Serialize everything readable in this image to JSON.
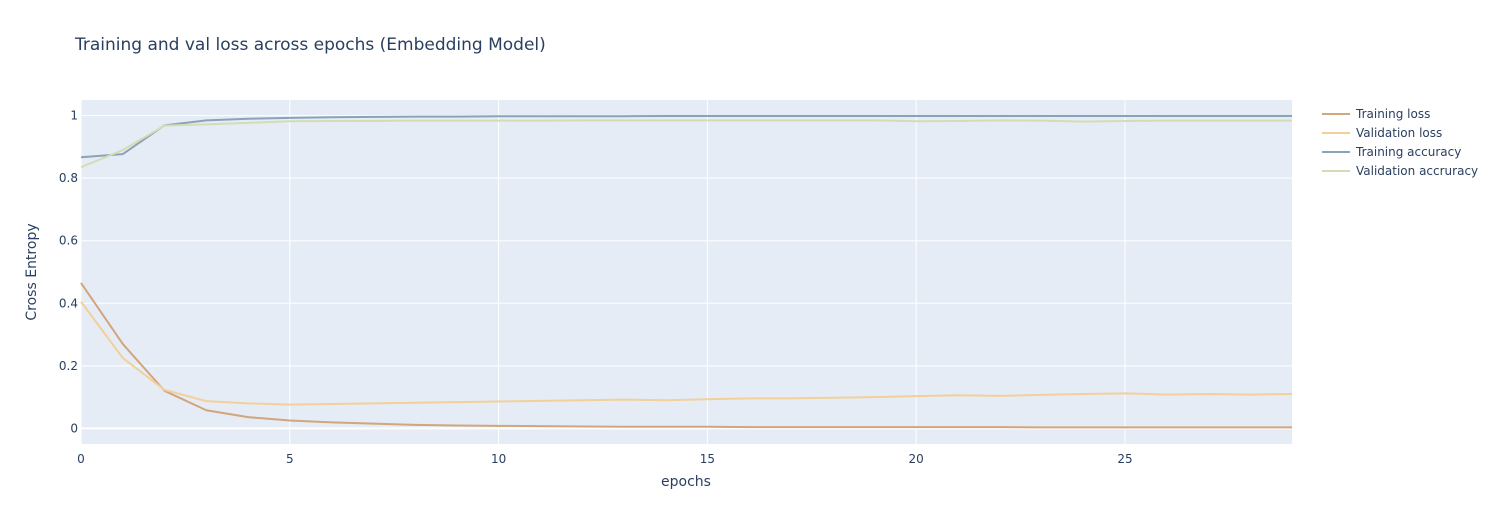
{
  "chart_data": {
    "type": "line",
    "title": "Training and val loss across epochs (Embedding Model)",
    "xlabel": "epochs",
    "ylabel": "Cross Entropy",
    "xlim": [
      0,
      29
    ],
    "ylim": [
      -0.05,
      1.05
    ],
    "x_ticks": [
      0,
      5,
      10,
      15,
      20,
      25
    ],
    "y_ticks": [
      0,
      0.2,
      0.4,
      0.6,
      0.8,
      1
    ],
    "x_tick_labels": [
      "0",
      "5",
      "10",
      "15",
      "20",
      "25"
    ],
    "y_tick_labels": [
      "0",
      "0.2",
      "0.4",
      "0.6",
      "0.8",
      "1"
    ],
    "grid": true,
    "legend_position": "top-right, outside plot",
    "x": [
      0,
      1,
      2,
      3,
      4,
      5,
      6,
      7,
      8,
      9,
      10,
      11,
      12,
      13,
      14,
      15,
      16,
      17,
      18,
      19,
      20,
      21,
      22,
      23,
      24,
      25,
      26,
      27,
      28,
      29
    ],
    "series": [
      {
        "name": "Training loss",
        "color": "#d2a57c",
        "values": [
          0.465,
          0.27,
          0.12,
          0.058,
          0.036,
          0.025,
          0.019,
          0.015,
          0.011,
          0.009,
          0.008,
          0.007,
          0.006,
          0.005,
          0.005,
          0.005,
          0.004,
          0.004,
          0.004,
          0.004,
          0.004,
          0.004,
          0.004,
          0.003,
          0.003,
          0.003,
          0.003,
          0.003,
          0.003,
          0.003
        ]
      },
      {
        "name": "Validation loss",
        "color": "#f3cf9a",
        "values": [
          0.405,
          0.225,
          0.123,
          0.087,
          0.08,
          0.076,
          0.078,
          0.08,
          0.082,
          0.084,
          0.086,
          0.088,
          0.09,
          0.092,
          0.09,
          0.093,
          0.096,
          0.096,
          0.098,
          0.1,
          0.103,
          0.106,
          0.104,
          0.107,
          0.11,
          0.112,
          0.108,
          0.11,
          0.108,
          0.11
        ]
      },
      {
        "name": "Training accuracy",
        "color": "#8aa3b8",
        "values": [
          0.867,
          0.877,
          0.969,
          0.985,
          0.99,
          0.993,
          0.995,
          0.996,
          0.997,
          0.997,
          0.998,
          0.998,
          0.998,
          0.998,
          0.999,
          0.999,
          0.999,
          0.999,
          0.999,
          0.999,
          0.999,
          0.999,
          0.999,
          0.999,
          0.999,
          0.999,
          0.999,
          0.999,
          0.999,
          0.999
        ]
      },
      {
        "name": "Validation accruracy",
        "color": "#d3ddb4",
        "values": [
          0.835,
          0.89,
          0.968,
          0.972,
          0.977,
          0.982,
          0.983,
          0.983,
          0.984,
          0.984,
          0.984,
          0.984,
          0.985,
          0.985,
          0.985,
          0.985,
          0.985,
          0.985,
          0.985,
          0.985,
          0.982,
          0.983,
          0.985,
          0.984,
          0.981,
          0.983,
          0.984,
          0.984,
          0.984,
          0.984
        ]
      }
    ]
  }
}
